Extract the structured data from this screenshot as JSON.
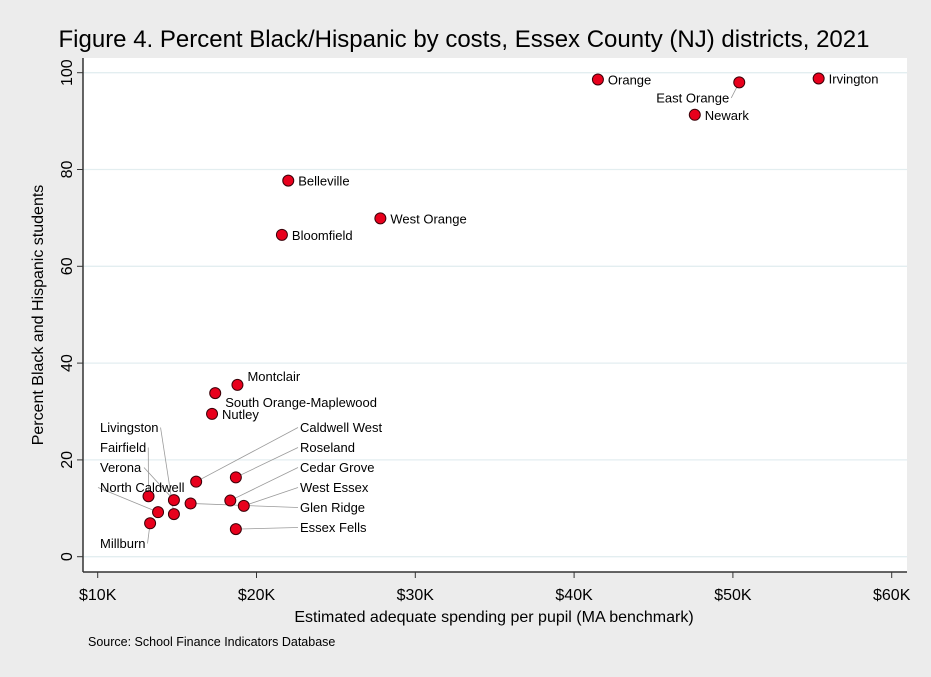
{
  "chart_data": {
    "type": "scatter",
    "title": "Figure 4. Percent Black/Hispanic by costs, Essex County (NJ) districts, 2021",
    "xlabel": "Estimated adequate spending per pupil (MA benchmark)",
    "ylabel": "Percent Black and Hispanic students",
    "note": "Source: School Finance Indicators Database",
    "xlim": [
      10000,
      60000
    ],
    "ylim": [
      0,
      100
    ],
    "x_ticks": [
      {
        "value": 10000,
        "label": "$10K"
      },
      {
        "value": 20000,
        "label": "$20K"
      },
      {
        "value": 30000,
        "label": "$30K"
      },
      {
        "value": 40000,
        "label": "$40K"
      },
      {
        "value": 50000,
        "label": "$50K"
      },
      {
        "value": 60000,
        "label": "$60K"
      }
    ],
    "y_ticks": [
      {
        "value": 0,
        "label": "0"
      },
      {
        "value": 20,
        "label": "20"
      },
      {
        "value": 40,
        "label": "40"
      },
      {
        "value": 60,
        "label": "60"
      },
      {
        "value": 80,
        "label": "80"
      },
      {
        "value": 100,
        "label": "100"
      }
    ],
    "grid": "horizontal",
    "marker_color": "#e8001c",
    "points": [
      {
        "label": "Orange",
        "x": 41500,
        "y": 98.6
      },
      {
        "label": "East Orange",
        "x": 50400,
        "y": 98.0
      },
      {
        "label": "Irvington",
        "x": 55400,
        "y": 98.8
      },
      {
        "label": "Newark",
        "x": 47600,
        "y": 91.3
      },
      {
        "label": "Belleville",
        "x": 22000,
        "y": 77.7
      },
      {
        "label": "West Orange",
        "x": 27800,
        "y": 69.9
      },
      {
        "label": "Bloomfield",
        "x": 21600,
        "y": 66.5
      },
      {
        "label": "Montclair",
        "x": 18800,
        "y": 35.5
      },
      {
        "label": "South Orange-Maplewood",
        "x": 17400,
        "y": 33.8
      },
      {
        "label": "Nutley",
        "x": 17200,
        "y": 29.5
      },
      {
        "label": "Caldwell West",
        "x": 16200,
        "y": 15.5
      },
      {
        "label": "Roseland",
        "x": 18700,
        "y": 16.4
      },
      {
        "label": "Fairfield",
        "x": 13200,
        "y": 12.5
      },
      {
        "label": "Verona",
        "x": 14800,
        "y": 11.7
      },
      {
        "label": "Glen Ridge",
        "x": 15850,
        "y": 11.0
      },
      {
        "label": "Cedar Grove",
        "x": 18350,
        "y": 11.6
      },
      {
        "label": "West Essex",
        "x": 19200,
        "y": 10.5
      },
      {
        "label": "North Caldwell",
        "x": 13800,
        "y": 9.2
      },
      {
        "label": "Livingston",
        "x": 14800,
        "y": 8.8
      },
      {
        "label": "Millburn",
        "x": 13300,
        "y": 6.9
      },
      {
        "label": "Essex Fells",
        "x": 18700,
        "y": 5.7
      }
    ]
  }
}
